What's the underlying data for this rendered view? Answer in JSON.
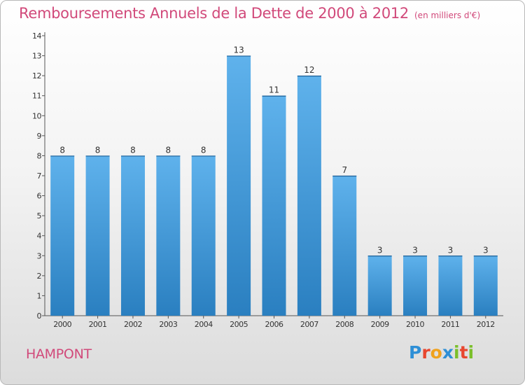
{
  "header": {
    "title": "Remboursements Annuels de la Dette de 2000 à 2012",
    "subtitle": "(en milliers d'€)"
  },
  "commune": "HAMPONT",
  "logo": {
    "letters": [
      "P",
      "r",
      "o",
      "x",
      "i",
      "t",
      "i"
    ],
    "colors": [
      "#2e8fd6",
      "#e8472f",
      "#f0a21d",
      "#2e8fd6",
      "#7bbf2b",
      "#e8472f",
      "#7bbf2b"
    ]
  },
  "colors": {
    "bar_top": "#5fb2ec",
    "bar_bottom": "#2a7fc0",
    "title": "#d1497a"
  },
  "chart_data": {
    "type": "bar",
    "title": "Remboursements Annuels de la Dette de 2000 à 2012",
    "subtitle": "(en milliers d'€)",
    "categories": [
      "2000",
      "2001",
      "2002",
      "2003",
      "2004",
      "2005",
      "2006",
      "2007",
      "2008",
      "2009",
      "2010",
      "2011",
      "2012"
    ],
    "values": [
      8,
      8,
      8,
      8,
      8,
      13,
      11,
      12,
      7,
      3,
      3,
      3,
      3
    ],
    "data_labels": [
      "8",
      "8",
      "8",
      "8",
      "8",
      "13",
      "11",
      "12",
      "7",
      "3",
      "3",
      "3",
      "3"
    ],
    "yticks": [
      "0",
      "1",
      "2",
      "3",
      "4",
      "5",
      "6",
      "7",
      "8",
      "9",
      "10",
      "11",
      "12",
      "13",
      "14"
    ],
    "ylim": [
      0,
      14
    ],
    "grid": false,
    "legend": "none"
  }
}
